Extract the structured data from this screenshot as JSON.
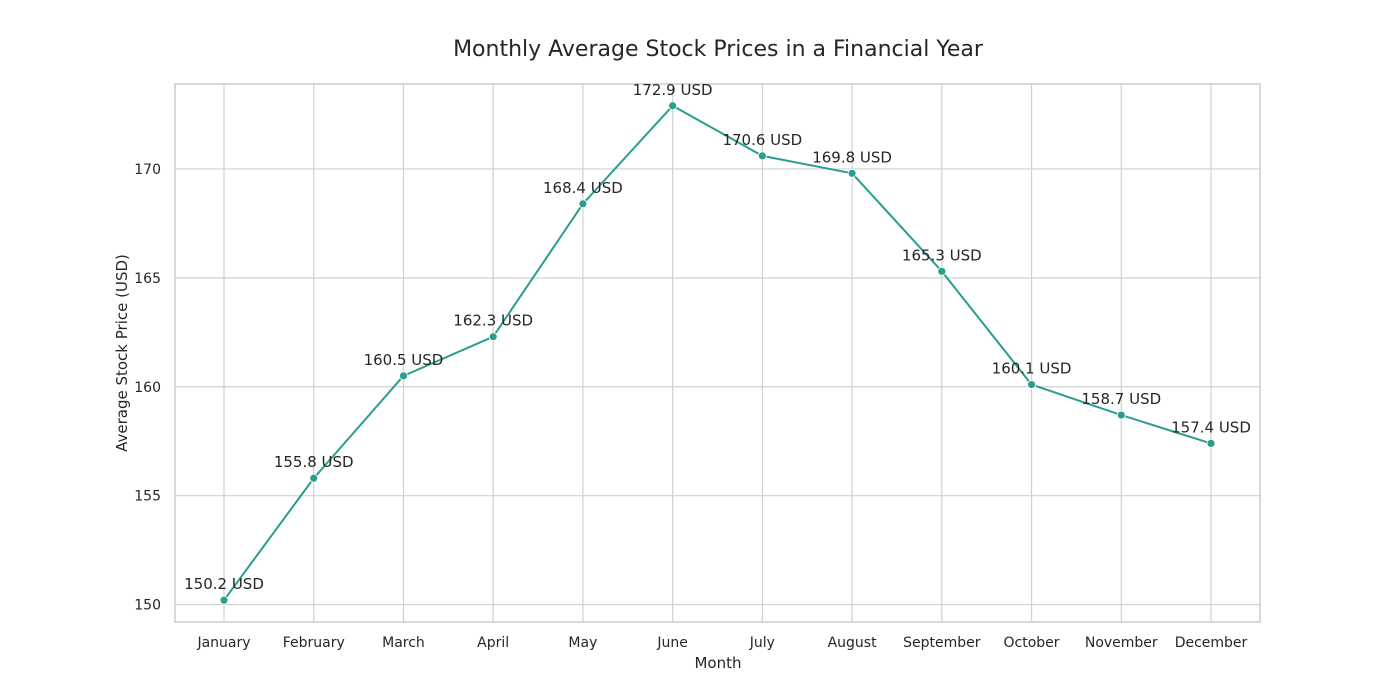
{
  "chart_data": {
    "type": "line",
    "title": "Monthly Average Stock Prices in a Financial Year",
    "xlabel": "Month",
    "ylabel": "Average Stock Price (USD)",
    "categories": [
      "January",
      "February",
      "March",
      "April",
      "May",
      "June",
      "July",
      "August",
      "September",
      "October",
      "November",
      "December"
    ],
    "series": [
      {
        "values": [
          150.2,
          155.8,
          160.5,
          162.3,
          168.4,
          172.9,
          170.6,
          169.8,
          165.3,
          160.1,
          158.7,
          157.4
        ],
        "color": "#2a9d8f"
      }
    ],
    "data_labels": [
      "150.2 USD",
      "155.8 USD",
      "160.5 USD",
      "162.3 USD",
      "168.4 USD",
      "172.9 USD",
      "170.6 USD",
      "169.8 USD",
      "165.3 USD",
      "160.1 USD",
      "158.7 USD",
      "157.4 USD"
    ],
    "ylim": [
      149.2,
      173.9
    ],
    "yticks": [
      150,
      155,
      160,
      165,
      170
    ],
    "ytick_labels": [
      "150",
      "155",
      "160",
      "165",
      "170"
    ],
    "grid": true,
    "marker": "circle"
  }
}
